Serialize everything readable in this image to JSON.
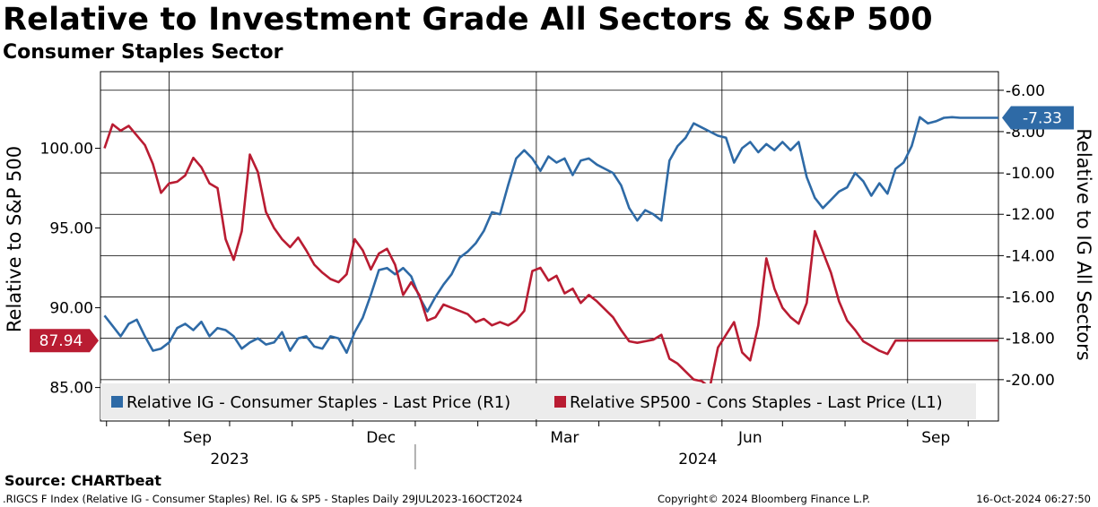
{
  "header": {
    "title": "Relative to Investment Grade All Sectors & S&P 500",
    "subtitle": "Consumer Staples Sector"
  },
  "footer": {
    "source": "Source: CHARTbeat",
    "ticker_line": ".RIGCS F Index (Relative IG - Consumer Staples) Rel. IG & SP5 - Staples  Daily 29JUL2023-16OCT2024",
    "copyright": "Copyright© 2024 Bloomberg Finance L.P.",
    "timestamp": "16-Oct-2024 06:27:50"
  },
  "chart_data": {
    "type": "line",
    "title": "Relative to Investment Grade All Sectors & S&P 500",
    "subtitle": "Consumer Staples Sector",
    "x_range": [
      "2023-07-29",
      "2024-10-16"
    ],
    "x_month_labels": [
      "Sep",
      "Dec",
      "Mar",
      "Jun",
      "Sep"
    ],
    "x_year_labels": [
      "2023",
      "2024"
    ],
    "left_axis": {
      "label": "Relative to S&P 500",
      "range": [
        82.9,
        104.8
      ],
      "ticks": [
        85.0,
        90.0,
        95.0,
        100.0
      ],
      "tick_labels": [
        "85.00",
        "90.00",
        "95.00",
        "100.00"
      ]
    },
    "right_axis": {
      "label": "Relative to IG All Sectors",
      "range": [
        -22.0,
        -5.1
      ],
      "ticks": [
        -6,
        -8,
        -10,
        -12,
        -14,
        -16,
        -18,
        -20
      ],
      "tick_labels": [
        "-6.00",
        "-8.00",
        "-10.00",
        "-12.00",
        "-14.00",
        "-16.00",
        "-18.00",
        "-20.00"
      ]
    },
    "grid": true,
    "legend_position": "bottom",
    "series": [
      {
        "name": "Relative IG - Consumer Staples - Last Price (R1)",
        "axis": "right",
        "color": "#2e6aa6",
        "last_value_label": "-7.33",
        "x": [
          "2023-07-31",
          "2023-08-04",
          "2023-08-08",
          "2023-08-12",
          "2023-08-16",
          "2023-08-20",
          "2023-08-24",
          "2023-08-28",
          "2023-09-01",
          "2023-09-05",
          "2023-09-09",
          "2023-09-13",
          "2023-09-17",
          "2023-09-21",
          "2023-09-25",
          "2023-09-29",
          "2023-10-03",
          "2023-10-07",
          "2023-10-11",
          "2023-10-15",
          "2023-10-19",
          "2023-10-23",
          "2023-10-27",
          "2023-10-31",
          "2023-11-04",
          "2023-11-08",
          "2023-11-12",
          "2023-11-16",
          "2023-11-20",
          "2023-11-24",
          "2023-11-28",
          "2023-12-02",
          "2023-12-06",
          "2023-12-10",
          "2023-12-14",
          "2023-12-18",
          "2023-12-22",
          "2023-12-26",
          "2023-12-30",
          "2024-01-03",
          "2024-01-07",
          "2024-01-11",
          "2024-01-15",
          "2024-01-19",
          "2024-01-23",
          "2024-01-27",
          "2024-01-31",
          "2024-02-04",
          "2024-02-08",
          "2024-02-12",
          "2024-02-16",
          "2024-02-20",
          "2024-02-24",
          "2024-02-28",
          "2024-03-03",
          "2024-03-07",
          "2024-03-11",
          "2024-03-15",
          "2024-03-19",
          "2024-03-23",
          "2024-03-27",
          "2024-03-31",
          "2024-04-04",
          "2024-04-08",
          "2024-04-12",
          "2024-04-16",
          "2024-04-20",
          "2024-04-24",
          "2024-04-28",
          "2024-05-02",
          "2024-05-06",
          "2024-05-10",
          "2024-05-14",
          "2024-05-18",
          "2024-05-22",
          "2024-05-26",
          "2024-05-30",
          "2024-06-03",
          "2024-06-07",
          "2024-06-11",
          "2024-06-15",
          "2024-06-19",
          "2024-06-23",
          "2024-06-27",
          "2024-07-01",
          "2024-07-05",
          "2024-07-09",
          "2024-07-13",
          "2024-07-17",
          "2024-07-21",
          "2024-07-25",
          "2024-07-29",
          "2024-08-02",
          "2024-08-06",
          "2024-08-10",
          "2024-08-14",
          "2024-08-18",
          "2024-08-22",
          "2024-08-26",
          "2024-08-30",
          "2024-09-03",
          "2024-09-07",
          "2024-09-11",
          "2024-09-15",
          "2024-09-19",
          "2024-09-23",
          "2024-09-27",
          "2024-10-01",
          "2024-10-05",
          "2024-10-09",
          "2024-10-13",
          "2024-10-16"
        ],
        "values": [
          -16.9,
          -17.4,
          -17.9,
          -17.3,
          -17.1,
          -17.9,
          -18.6,
          -18.5,
          -18.2,
          -17.5,
          -17.3,
          -17.6,
          -17.2,
          -17.9,
          -17.5,
          -17.6,
          -17.9,
          -18.5,
          -18.2,
          -18.0,
          -18.3,
          -18.2,
          -17.7,
          -18.6,
          -18.0,
          -17.9,
          -18.4,
          -18.5,
          -17.9,
          -18.0,
          -18.7,
          -17.7,
          -17.0,
          -15.9,
          -14.7,
          -14.6,
          -14.9,
          -14.6,
          -15.0,
          -16.0,
          -16.7,
          -16.0,
          -15.4,
          -14.9,
          -14.1,
          -13.8,
          -13.4,
          -12.8,
          -11.9,
          -12.0,
          -10.6,
          -9.3,
          -8.9,
          -9.3,
          -9.9,
          -9.2,
          -9.5,
          -9.3,
          -10.1,
          -9.4,
          -9.3,
          -9.6,
          -9.8,
          -10.0,
          -10.6,
          -11.7,
          -12.3,
          -11.8,
          -12.0,
          -12.3,
          -9.4,
          -8.7,
          -8.3,
          -7.6,
          -7.8,
          -8.0,
          -8.2,
          -8.3,
          -9.5,
          -8.8,
          -8.5,
          -9.0,
          -8.6,
          -8.9,
          -8.5,
          -8.9,
          -8.5,
          -10.2,
          -11.2,
          -11.7,
          -11.3,
          -10.9,
          -10.7,
          -10.0,
          -10.4,
          -11.1,
          -10.5,
          -11.0,
          -9.8,
          -9.5,
          -8.7,
          -7.3,
          -7.6,
          -7.5,
          -7.33,
          -7.3,
          -7.33,
          -7.33,
          -7.33,
          -7.33,
          -7.33,
          -7.33
        ]
      },
      {
        "name": "Relative SP500 - Cons Staples - Last Price (L1)",
        "axis": "left",
        "color": "#b91c32",
        "last_value_label": "87.94",
        "x": [
          "2023-07-31",
          "2023-08-04",
          "2023-08-08",
          "2023-08-12",
          "2023-08-16",
          "2023-08-20",
          "2023-08-24",
          "2023-08-28",
          "2023-09-01",
          "2023-09-05",
          "2023-09-09",
          "2023-09-13",
          "2023-09-17",
          "2023-09-21",
          "2023-09-25",
          "2023-09-29",
          "2023-10-03",
          "2023-10-07",
          "2023-10-11",
          "2023-10-15",
          "2023-10-19",
          "2023-10-23",
          "2023-10-27",
          "2023-10-31",
          "2023-11-04",
          "2023-11-08",
          "2023-11-12",
          "2023-11-16",
          "2023-11-20",
          "2023-11-24",
          "2023-11-28",
          "2023-12-02",
          "2023-12-06",
          "2023-12-10",
          "2023-12-14",
          "2023-12-18",
          "2023-12-22",
          "2023-12-26",
          "2023-12-30",
          "2024-01-03",
          "2024-01-07",
          "2024-01-11",
          "2024-01-15",
          "2024-01-19",
          "2024-01-23",
          "2024-01-27",
          "2024-01-31",
          "2024-02-04",
          "2024-02-08",
          "2024-02-12",
          "2024-02-16",
          "2024-02-20",
          "2024-02-24",
          "2024-02-28",
          "2024-03-03",
          "2024-03-07",
          "2024-03-11",
          "2024-03-15",
          "2024-03-19",
          "2024-03-23",
          "2024-03-27",
          "2024-03-31",
          "2024-04-04",
          "2024-04-08",
          "2024-04-12",
          "2024-04-16",
          "2024-04-20",
          "2024-04-24",
          "2024-04-28",
          "2024-05-02",
          "2024-05-06",
          "2024-05-10",
          "2024-05-14",
          "2024-05-18",
          "2024-05-22",
          "2024-05-26",
          "2024-05-30",
          "2024-06-03",
          "2024-06-07",
          "2024-06-11",
          "2024-06-15",
          "2024-06-19",
          "2024-06-23",
          "2024-06-27",
          "2024-07-01",
          "2024-07-05",
          "2024-07-09",
          "2024-07-13",
          "2024-07-17",
          "2024-07-21",
          "2024-07-25",
          "2024-07-29",
          "2024-08-02",
          "2024-08-06",
          "2024-08-10",
          "2024-08-14",
          "2024-08-18",
          "2024-08-22",
          "2024-08-26",
          "2024-08-30",
          "2024-09-03",
          "2024-09-07",
          "2024-09-11",
          "2024-09-15",
          "2024-09-19",
          "2024-09-23",
          "2024-09-27",
          "2024-10-01",
          "2024-10-05",
          "2024-10-09",
          "2024-10-13",
          "2024-10-16"
        ],
        "values": [
          100.0,
          101.5,
          101.1,
          101.4,
          100.8,
          100.2,
          99.0,
          97.2,
          97.8,
          97.9,
          98.3,
          99.4,
          98.8,
          97.8,
          97.5,
          94.3,
          93.0,
          94.8,
          99.6,
          98.5,
          96.0,
          95.0,
          94.3,
          93.8,
          94.4,
          93.6,
          92.7,
          92.2,
          91.8,
          91.6,
          92.1,
          94.3,
          93.6,
          92.4,
          93.4,
          93.7,
          92.7,
          90.8,
          91.6,
          90.8,
          89.2,
          89.4,
          90.2,
          90.0,
          89.8,
          89.6,
          89.1,
          89.3,
          88.9,
          89.1,
          88.9,
          89.2,
          89.8,
          92.3,
          92.5,
          91.7,
          92.0,
          90.9,
          91.2,
          90.3,
          90.8,
          90.4,
          89.9,
          89.4,
          88.6,
          87.9,
          87.8,
          87.9,
          88.0,
          88.3,
          86.8,
          86.5,
          86.0,
          85.5,
          85.4,
          85.0,
          87.5,
          88.3,
          89.1,
          87.2,
          86.7,
          88.9,
          93.1,
          91.2,
          90.0,
          89.4,
          89.0,
          90.3,
          94.8,
          93.5,
          92.2,
          90.4,
          89.2,
          88.6,
          87.9,
          87.6,
          87.3,
          87.1,
          87.94,
          87.94,
          87.94,
          87.94,
          87.94,
          87.94,
          87.94,
          87.94,
          87.94,
          87.94,
          87.94,
          87.94,
          87.94,
          87.94
        ]
      }
    ]
  }
}
